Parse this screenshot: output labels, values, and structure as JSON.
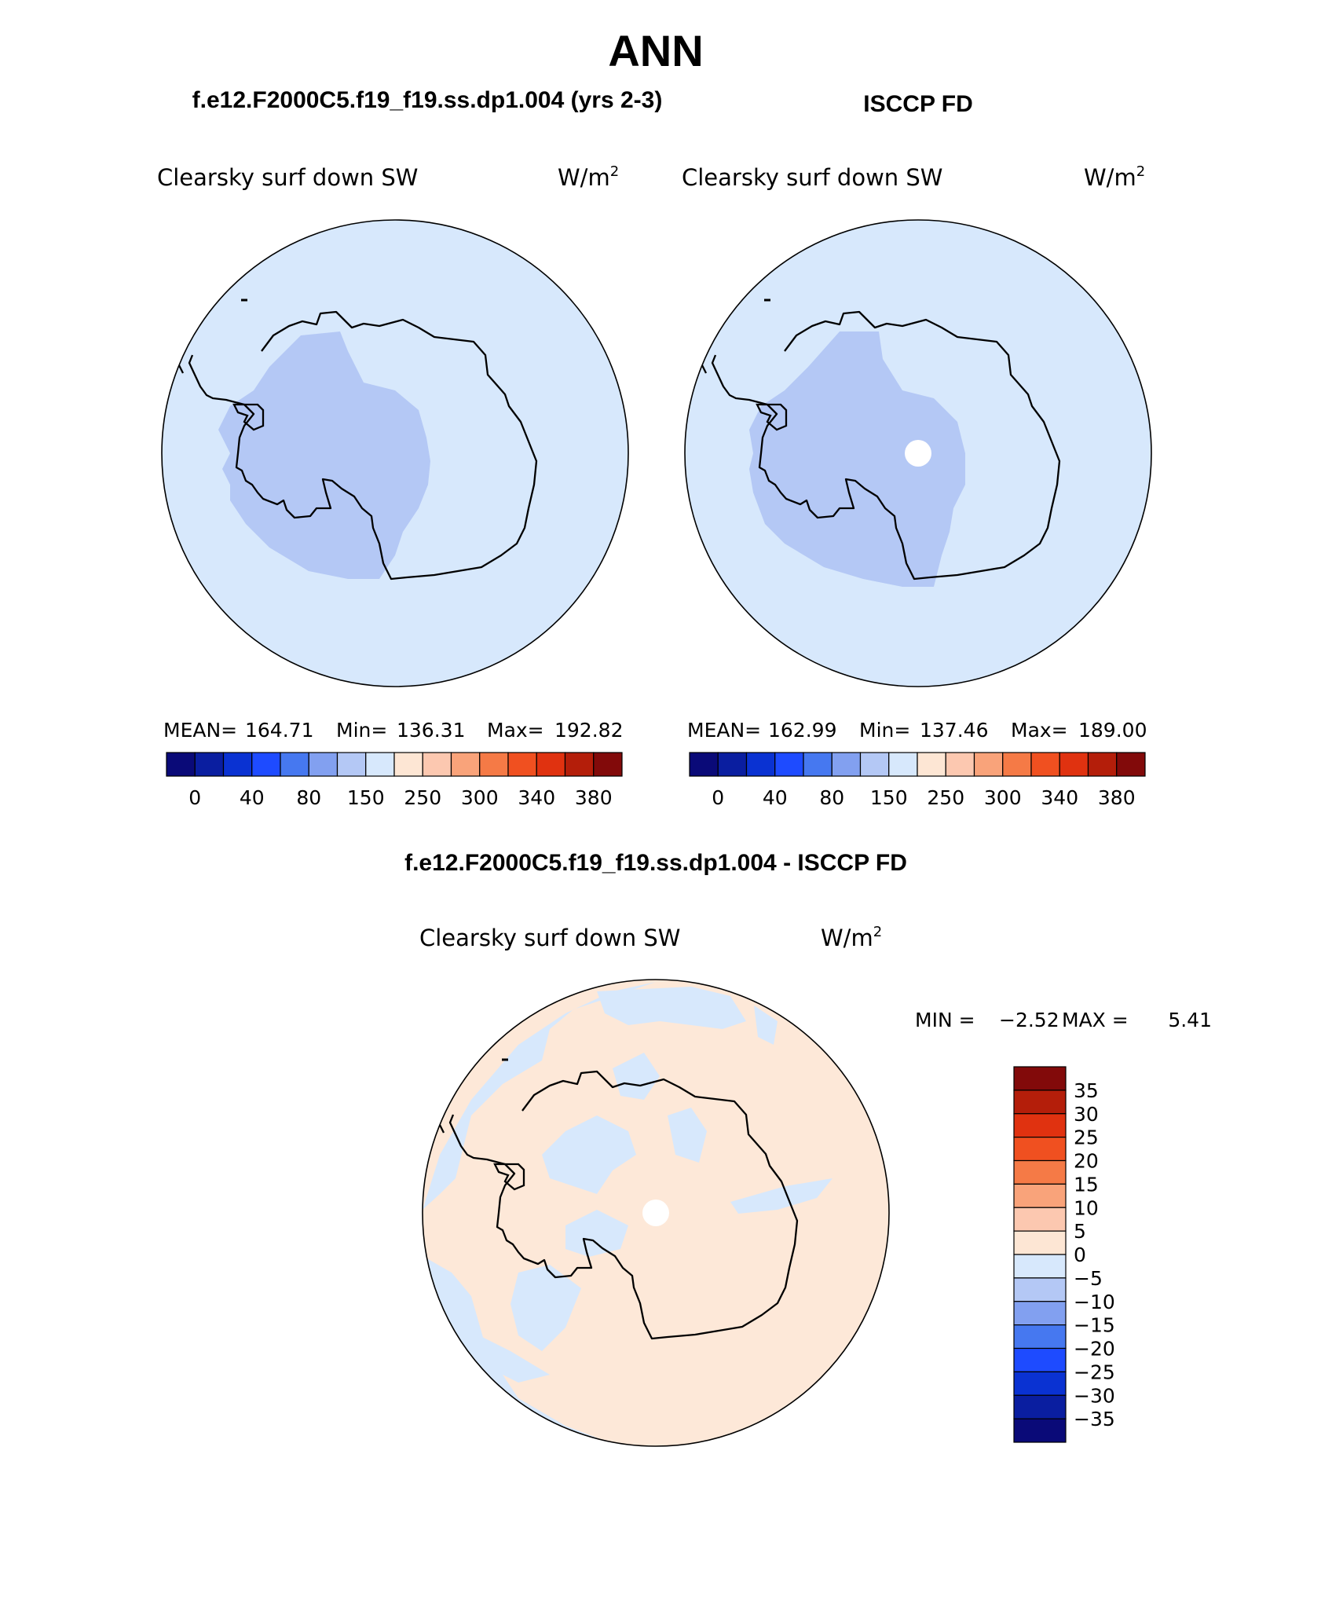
{
  "figure": {
    "season": "ANN"
  },
  "panels": [
    {
      "header": "f.e12.F2000C5.f19_f19.ss.dp1.004 (yrs 2-3)",
      "variable": "Clearsky surf down SW",
      "units_base": "W/m",
      "units_exp": "2",
      "stats": {
        "mean_label": "MEAN=",
        "mean": "164.71",
        "min_label": "Min=",
        "min": "136.31",
        "max_label": "Max=",
        "max": "192.82"
      }
    },
    {
      "header": "ISCCP FD",
      "variable": "Clearsky surf down SW",
      "units_base": "W/m",
      "units_exp": "2",
      "stats": {
        "mean_label": "MEAN=",
        "mean": "162.99",
        "min_label": "Min=",
        "min": "137.46",
        "max_label": "Max=",
        "max": "189.00"
      }
    },
    {
      "header": "f.e12.F2000C5.f19_f19.ss.dp1.004 - ISCCP FD",
      "variable": "Clearsky surf down SW",
      "units_base": "W/m",
      "units_exp": "2",
      "minmax": {
        "min_label": "MIN =",
        "min": "−2.52",
        "max_label": "MAX =",
        "max": "5.41"
      }
    }
  ],
  "colorbars": {
    "absolute": {
      "colors": [
        "#0a0a78",
        "#0a1ea0",
        "#0a32d2",
        "#1e4bff",
        "#4678f0",
        "#82a0f0",
        "#b4c8f5",
        "#d7e8fc",
        "#fde6d4",
        "#fcc8b0",
        "#f9a37a",
        "#f57a46",
        "#f05020",
        "#e03210",
        "#b41e0a",
        "#820a0a"
      ],
      "tick_labels": [
        "0",
        "40",
        "80",
        "150",
        "250",
        "300",
        "340",
        "380"
      ]
    },
    "difference": {
      "colors_top_to_bottom": [
        "#820a0a",
        "#b41e0a",
        "#e03210",
        "#f05020",
        "#f57a46",
        "#f9a37a",
        "#fcc8b0",
        "#fde6d4",
        "#d7e8fc",
        "#b4c8f5",
        "#82a0f0",
        "#4678f0",
        "#1e4bff",
        "#0a32d2",
        "#0a1ea0",
        "#0a0a78"
      ],
      "tick_labels": [
        "35",
        "30",
        "25",
        "20",
        "15",
        "10",
        "5",
        "0",
        "−5",
        "−10",
        "−15",
        "−20",
        "−25",
        "−30",
        "−35"
      ]
    }
  },
  "colors": {
    "ocean_fill": "#d7e8fc",
    "interior_plateau": "#d9e8fb",
    "west_antarctic": "#b4c8f5",
    "diff_positive": "#fde8d8",
    "diff_negative": "#d7e8fc",
    "coastline": "#000000"
  }
}
